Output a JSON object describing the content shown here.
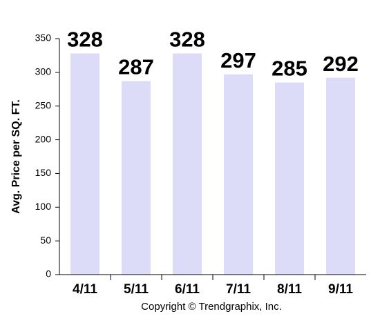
{
  "chart_data": {
    "type": "bar",
    "y_label": "Avg. Price per SQ. FT.",
    "x_label": "Copyright © Trendgraphix, Inc.",
    "categories": [
      "4/11",
      "5/11",
      "6/11",
      "7/11",
      "8/11",
      "9/11"
    ],
    "values": [
      328,
      287,
      328,
      297,
      285,
      292
    ],
    "color": "#dcdcf8",
    "ylim": [
      0,
      350
    ],
    "yticks": [
      0,
      50,
      100,
      150,
      200,
      250,
      300,
      350
    ],
    "grid": false
  }
}
